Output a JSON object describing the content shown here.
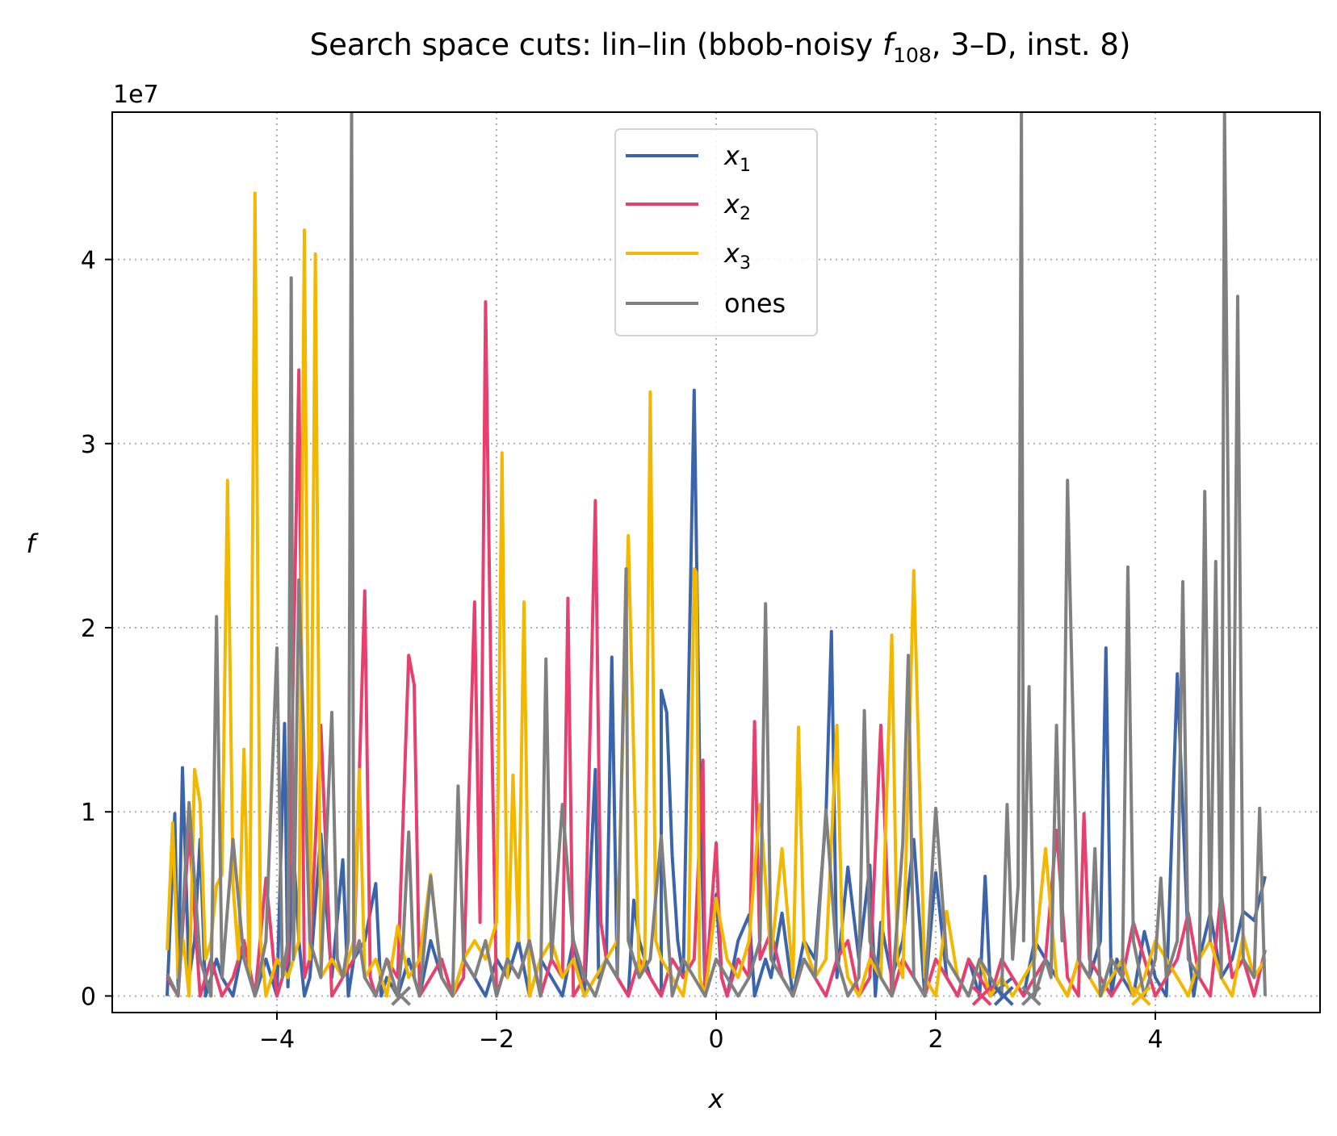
{
  "chart_data": {
    "type": "line",
    "title_prefix": "Search space cuts: lin–lin (bbob-noisy ",
    "title_func": "f",
    "title_sub": "108",
    "title_suffix": ", 3–D, inst. 8)",
    "xlabel": "x",
    "ylabel": "f",
    "offset_text": "1e7",
    "xlim": [
      -5.5,
      5.5
    ],
    "ylim": [
      -0.09,
      4.8
    ],
    "xticks": [
      -4,
      -2,
      0,
      2,
      4
    ],
    "xtick_labels": [
      "−4",
      "−2",
      "0",
      "2",
      "4"
    ],
    "yticks": [
      0,
      1,
      2,
      3,
      4
    ],
    "ytick_labels": [
      "0",
      "1",
      "2",
      "3",
      "4"
    ],
    "grid": true,
    "legend_position": "upper-center",
    "series": [
      {
        "name": "x",
        "sub": "1",
        "color": "#3c64aa",
        "x": [
          -5.0,
          -4.93,
          -4.9,
          -4.86,
          -4.8,
          -4.75,
          -4.7,
          -4.65,
          -4.55,
          -4.5,
          -4.4,
          -4.3,
          -4.2,
          -4.1,
          -4.0,
          -3.93,
          -3.9,
          -3.85,
          -3.8,
          -3.75,
          -3.7,
          -3.6,
          -3.5,
          -3.4,
          -3.35,
          -3.3,
          -3.2,
          -3.1,
          -3.05,
          -3.0,
          -2.9,
          -2.8,
          -2.7,
          -2.6,
          -2.5,
          -2.4,
          -2.3,
          -2.2,
          -2.1,
          -2.0,
          -1.9,
          -1.8,
          -1.7,
          -1.6,
          -1.5,
          -1.4,
          -1.3,
          -1.2,
          -1.1,
          -1.07,
          -1.0,
          -0.95,
          -0.9,
          -0.8,
          -0.75,
          -0.7,
          -0.6,
          -0.5,
          -0.5,
          -0.45,
          -0.4,
          -0.35,
          -0.3,
          -0.2,
          -0.15,
          -0.1,
          0.0,
          0.05,
          0.1,
          0.2,
          0.3,
          0.35,
          0.4,
          0.45,
          0.5,
          0.6,
          0.7,
          0.8,
          0.9,
          1.0,
          1.05,
          1.1,
          1.2,
          1.3,
          1.4,
          1.45,
          1.5,
          1.6,
          1.7,
          1.8,
          1.9,
          2.0,
          2.1,
          2.2,
          2.3,
          2.4,
          2.45,
          2.5,
          2.6,
          2.7,
          2.8,
          2.9,
          3.0,
          3.1,
          3.2,
          3.3,
          3.4,
          3.5,
          3.55,
          3.6,
          3.65,
          3.7,
          3.8,
          3.9,
          4.0,
          4.1,
          4.2,
          4.3,
          4.35,
          4.4,
          4.5,
          4.6,
          4.7,
          4.8,
          4.9,
          5.0
        ],
        "y": [
          0.0,
          0.99,
          0.05,
          1.24,
          0.1,
          0.3,
          0.85,
          0.0,
          0.2,
          0.1,
          0.0,
          0.3,
          0.0,
          0.2,
          0.0,
          1.48,
          0.05,
          0.8,
          0.3,
          0.0,
          0.1,
          0.88,
          0.1,
          0.74,
          0.0,
          0.2,
          0.3,
          0.61,
          0.0,
          0.1,
          0.0,
          0.2,
          0.0,
          0.3,
          0.1,
          0.0,
          0.2,
          0.1,
          0.0,
          0.2,
          0.1,
          0.3,
          0.0,
          0.2,
          0.1,
          0.0,
          0.3,
          0.0,
          1.23,
          0.1,
          0.2,
          1.84,
          0.1,
          0.0,
          0.52,
          0.3,
          0.1,
          0.0,
          1.66,
          1.54,
          0.76,
          0.3,
          0.1,
          3.29,
          1.23,
          0.0,
          0.55,
          0.1,
          0.0,
          0.3,
          0.44,
          0.0,
          0.1,
          0.2,
          0.1,
          0.45,
          0.0,
          0.3,
          0.2,
          0.97,
          1.98,
          0.1,
          0.7,
          0.2,
          0.71,
          0.0,
          0.4,
          0.1,
          0.3,
          0.85,
          0.0,
          0.67,
          0.1,
          0.0,
          0.2,
          0.0,
          0.65,
          0.0,
          0.05,
          0.1,
          0.0,
          0.3,
          0.2,
          0.1,
          0.0,
          0.2,
          0.1,
          0.3,
          1.89,
          0.0,
          0.2,
          0.1,
          0.0,
          0.35,
          0.1,
          0.0,
          1.75,
          0.27,
          0.0,
          0.2,
          0.45,
          0.1,
          0.2,
          0.46,
          0.41,
          0.65
        ]
      },
      {
        "name": "x",
        "sub": "2",
        "color": "#e8406e",
        "x": [
          -5.0,
          -4.9,
          -4.8,
          -4.7,
          -4.6,
          -4.5,
          -4.4,
          -4.3,
          -4.2,
          -4.1,
          -4.0,
          -3.9,
          -3.8,
          -3.75,
          -3.7,
          -3.6,
          -3.5,
          -3.4,
          -3.3,
          -3.2,
          -3.15,
          -3.1,
          -3.0,
          -2.9,
          -2.8,
          -2.75,
          -2.7,
          -2.6,
          -2.5,
          -2.4,
          -2.3,
          -2.2,
          -2.15,
          -2.1,
          -2.05,
          -2.0,
          -1.9,
          -1.8,
          -1.7,
          -1.6,
          -1.5,
          -1.4,
          -1.35,
          -1.3,
          -1.2,
          -1.1,
          -1.05,
          -1.0,
          -0.9,
          -0.8,
          -0.7,
          -0.6,
          -0.5,
          -0.4,
          -0.3,
          -0.2,
          -0.12,
          -0.1,
          0.0,
          0.05,
          0.1,
          0.2,
          0.3,
          0.35,
          0.4,
          0.5,
          0.6,
          0.7,
          0.8,
          0.9,
          1.0,
          1.1,
          1.2,
          1.3,
          1.4,
          1.5,
          1.6,
          1.7,
          1.8,
          1.9,
          2.0,
          2.1,
          2.2,
          2.3,
          2.4,
          2.5,
          2.6,
          2.7,
          2.8,
          2.9,
          3.0,
          3.1,
          3.2,
          3.3,
          3.35,
          3.4,
          3.5,
          3.6,
          3.7,
          3.8,
          3.9,
          4.0,
          4.1,
          4.2,
          4.3,
          4.4,
          4.5,
          4.6,
          4.7,
          4.8,
          4.9,
          5.0
        ],
        "y": [
          0.1,
          0.0,
          0.9,
          0.0,
          0.2,
          0.0,
          0.1,
          0.3,
          0.0,
          0.64,
          0.0,
          0.2,
          3.4,
          0.1,
          0.2,
          1.47,
          0.0,
          0.1,
          0.2,
          2.2,
          0.1,
          0.0,
          0.2,
          0.1,
          1.85,
          1.69,
          0.0,
          0.1,
          0.2,
          0.0,
          0.1,
          2.14,
          0.4,
          3.77,
          1.66,
          0.0,
          0.2,
          0.1,
          0.3,
          0.0,
          0.2,
          0.1,
          2.16,
          0.0,
          0.1,
          2.69,
          0.4,
          0.2,
          0.1,
          0.0,
          0.2,
          0.1,
          0.0,
          0.2,
          0.1,
          0.2,
          1.28,
          0.0,
          0.83,
          0.1,
          0.0,
          0.2,
          0.1,
          1.49,
          0.2,
          0.35,
          0.1,
          0.0,
          0.2,
          0.1,
          0.0,
          0.2,
          0.3,
          0.0,
          0.1,
          1.47,
          0.0,
          0.2,
          0.1,
          0.0,
          0.2,
          0.1,
          0.0,
          0.2,
          0.1,
          0.0,
          0.2,
          0.1,
          0.0,
          0.1,
          0.2,
          0.9,
          0.1,
          0.0,
          0.99,
          0.2,
          0.1,
          0.0,
          0.1,
          0.4,
          0.2,
          0.0,
          0.1,
          0.2,
          0.45,
          0.1,
          0.0,
          0.56,
          0.1,
          0.2,
          0.0,
          0.25
        ]
      },
      {
        "name": "x",
        "sub": "3",
        "color": "#f2b800",
        "x": [
          -5.0,
          -4.95,
          -4.9,
          -4.85,
          -4.8,
          -4.75,
          -4.7,
          -4.65,
          -4.6,
          -4.55,
          -4.5,
          -4.45,
          -4.4,
          -4.35,
          -4.3,
          -4.25,
          -4.2,
          -4.15,
          -4.1,
          -4.0,
          -3.9,
          -3.8,
          -3.75,
          -3.7,
          -3.65,
          -3.6,
          -3.5,
          -3.4,
          -3.3,
          -3.25,
          -3.2,
          -3.1,
          -3.0,
          -2.9,
          -2.8,
          -2.7,
          -2.6,
          -2.5,
          -2.4,
          -2.3,
          -2.2,
          -2.1,
          -2.0,
          -1.95,
          -1.9,
          -1.85,
          -1.8,
          -1.75,
          -1.7,
          -1.6,
          -1.5,
          -1.4,
          -1.3,
          -1.2,
          -1.1,
          -1.0,
          -0.9,
          -0.8,
          -0.7,
          -0.65,
          -0.6,
          -0.55,
          -0.5,
          -0.4,
          -0.3,
          -0.25,
          -0.2,
          -0.18,
          -0.15,
          -0.1,
          0.0,
          0.1,
          0.2,
          0.3,
          0.4,
          0.5,
          0.6,
          0.7,
          0.75,
          0.8,
          0.9,
          1.0,
          1.1,
          1.15,
          1.2,
          1.3,
          1.4,
          1.5,
          1.6,
          1.65,
          1.7,
          1.8,
          1.9,
          2.0,
          2.1,
          2.2,
          2.3,
          2.4,
          2.5,
          2.6,
          2.7,
          2.8,
          2.9,
          3.0,
          3.1,
          3.2,
          3.3,
          3.4,
          3.5,
          3.6,
          3.7,
          3.8,
          3.9,
          4.0,
          4.1,
          4.2,
          4.3,
          4.4,
          4.5,
          4.6,
          4.7,
          4.8,
          4.9,
          5.0
        ],
        "y": [
          0.25,
          0.94,
          0.1,
          0.3,
          0.0,
          1.23,
          1.05,
          0.2,
          0.3,
          0.6,
          0.66,
          2.8,
          0.6,
          0.2,
          1.34,
          0.1,
          4.36,
          0.3,
          0.0,
          0.2,
          0.1,
          0.3,
          4.16,
          0.2,
          4.03,
          0.1,
          0.2,
          0.1,
          0.3,
          1.23,
          0.1,
          0.2,
          0.0,
          0.38,
          0.1,
          0.2,
          0.66,
          0.1,
          0.0,
          0.2,
          0.3,
          0.2,
          0.4,
          2.95,
          0.1,
          1.2,
          0.3,
          2.14,
          0.0,
          0.2,
          0.3,
          0.1,
          0.2,
          0.0,
          0.1,
          0.2,
          0.3,
          2.5,
          0.1,
          0.2,
          3.28,
          0.3,
          0.2,
          0.1,
          0.0,
          0.2,
          2.32,
          2.3,
          0.1,
          0.0,
          0.53,
          0.2,
          0.1,
          0.3,
          1.04,
          0.2,
          0.8,
          0.1,
          1.46,
          0.3,
          0.1,
          0.2,
          1.47,
          0.3,
          0.1,
          0.0,
          0.2,
          0.1,
          1.96,
          0.2,
          0.1,
          2.31,
          0.1,
          0.0,
          0.46,
          0.1,
          0.0,
          0.2,
          0.0,
          0.1,
          0.0,
          0.1,
          0.2,
          0.8,
          0.1,
          0.0,
          0.2,
          0.1,
          0.0,
          0.1,
          0.2,
          0.0,
          0.1,
          0.3,
          0.2,
          0.1,
          0.0,
          0.2,
          0.3,
          0.1,
          0.0,
          0.33,
          0.1,
          0.2
        ]
      },
      {
        "name": "ones",
        "sub": "",
        "color": "#808080",
        "x": [
          -5.0,
          -4.9,
          -4.8,
          -4.7,
          -4.6,
          -4.55,
          -4.5,
          -4.4,
          -4.3,
          -4.2,
          -4.1,
          -4.0,
          -3.95,
          -3.9,
          -3.87,
          -3.85,
          -3.8,
          -3.7,
          -3.6,
          -3.5,
          -3.45,
          -3.4,
          -3.35,
          -3.32,
          -3.3,
          -3.25,
          -3.2,
          -3.1,
          -3.0,
          -2.9,
          -2.85,
          -2.8,
          -2.75,
          -2.7,
          -2.6,
          -2.5,
          -2.4,
          -2.35,
          -2.3,
          -2.2,
          -2.1,
          -2.0,
          -1.9,
          -1.8,
          -1.7,
          -1.6,
          -1.55,
          -1.5,
          -1.4,
          -1.3,
          -1.2,
          -1.1,
          -1.0,
          -0.9,
          -0.82,
          -0.8,
          -0.7,
          -0.6,
          -0.5,
          -0.4,
          -0.3,
          -0.2,
          -0.1,
          0.0,
          0.1,
          0.2,
          0.3,
          0.4,
          0.45,
          0.5,
          0.6,
          0.7,
          0.8,
          0.9,
          1.0,
          1.1,
          1.2,
          1.3,
          1.35,
          1.4,
          1.5,
          1.6,
          1.7,
          1.75,
          1.8,
          1.9,
          2.0,
          2.1,
          2.2,
          2.3,
          2.4,
          2.5,
          2.6,
          2.65,
          2.7,
          2.75,
          2.78,
          2.8,
          2.85,
          2.9,
          3.0,
          3.05,
          3.1,
          3.15,
          3.2,
          3.3,
          3.4,
          3.45,
          3.5,
          3.6,
          3.7,
          3.75,
          3.8,
          3.9,
          4.0,
          4.05,
          4.1,
          4.2,
          4.25,
          4.3,
          4.4,
          4.45,
          4.5,
          4.55,
          4.6,
          4.63,
          4.7,
          4.75,
          4.8,
          4.9,
          4.95,
          5.0
        ],
        "y": [
          0.12,
          0.0,
          1.05,
          0.2,
          0.0,
          2.06,
          0.1,
          0.85,
          0.2,
          0.0,
          0.3,
          1.89,
          0.1,
          0.3,
          3.9,
          0.2,
          2.26,
          0.3,
          0.1,
          1.54,
          0.2,
          0.1,
          0.3,
          4.8,
          0.2,
          0.3,
          0.1,
          0.0,
          0.2,
          0.0,
          0.3,
          0.89,
          0.1,
          0.0,
          0.65,
          0.1,
          0.0,
          1.14,
          0.2,
          0.1,
          0.3,
          0.0,
          0.2,
          0.1,
          0.3,
          0.0,
          1.83,
          0.2,
          1.04,
          0.3,
          0.1,
          0.0,
          0.2,
          0.1,
          2.32,
          0.3,
          0.1,
          0.2,
          0.87,
          0.0,
          0.2,
          0.1,
          0.0,
          0.2,
          0.1,
          0.0,
          0.1,
          0.3,
          2.13,
          0.2,
          0.1,
          0.0,
          0.2,
          0.1,
          1.01,
          0.2,
          0.0,
          0.1,
          1.55,
          0.3,
          0.1,
          0.0,
          0.83,
          1.85,
          0.1,
          0.0,
          1.02,
          0.2,
          0.1,
          0.0,
          0.2,
          0.1,
          0.0,
          1.04,
          0.2,
          0.6,
          4.8,
          0.3,
          1.68,
          0.0,
          0.2,
          0.1,
          1.47,
          0.3,
          2.8,
          0.2,
          0.1,
          0.8,
          0.0,
          0.2,
          0.1,
          2.33,
          0.3,
          0.0,
          0.2,
          0.64,
          0.1,
          0.3,
          2.25,
          0.2,
          0.1,
          2.74,
          0.3,
          2.36,
          0.1,
          4.8,
          0.3,
          3.8,
          0.2,
          0.1,
          1.02,
          0.0
        ]
      }
    ],
    "markers": [
      {
        "x": -2.87,
        "color": "#808080"
      },
      {
        "x": 2.42,
        "color": "#e8406e"
      },
      {
        "x": 2.62,
        "color": "#3c64aa"
      },
      {
        "x": 2.87,
        "color": "#808080"
      },
      {
        "x": 3.87,
        "color": "#f2b800"
      }
    ]
  }
}
